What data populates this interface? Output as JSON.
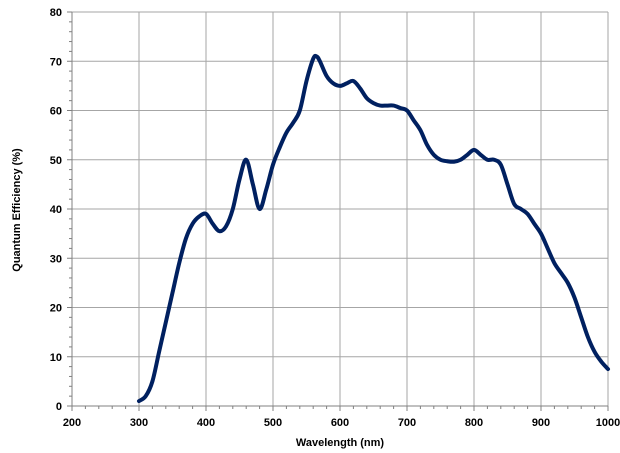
{
  "chart_data": {
    "type": "line",
    "title": "",
    "xlabel": "Wavelength (nm)",
    "ylabel": "Quantum Efficiency (%)",
    "xlim": [
      200,
      1000
    ],
    "ylim": [
      0,
      80
    ],
    "x_ticks": [
      200,
      300,
      400,
      500,
      600,
      700,
      800,
      900,
      1000
    ],
    "y_ticks": [
      0,
      10,
      20,
      30,
      40,
      50,
      60,
      70,
      80
    ],
    "x_tick_labels": [
      "200",
      "300",
      "400",
      "500",
      "600",
      "700",
      "800",
      "900",
      "1000"
    ],
    "y_tick_labels": [
      "0",
      "10",
      "20",
      "30",
      "40",
      "50",
      "60",
      "70",
      "80"
    ],
    "grid": true,
    "legend": "none",
    "line_color": "#002060",
    "series": [
      {
        "x": [
          300,
          310,
          320,
          330,
          340,
          350,
          360,
          370,
          380,
          390,
          400,
          410,
          420,
          430,
          440,
          450,
          460,
          470,
          480,
          490,
          500,
          510,
          520,
          530,
          540,
          550,
          560,
          565,
          570,
          580,
          590,
          600,
          610,
          620,
          630,
          640,
          650,
          660,
          670,
          680,
          690,
          700,
          710,
          720,
          730,
          740,
          750,
          760,
          770,
          780,
          790,
          800,
          810,
          820,
          830,
          840,
          850,
          860,
          870,
          880,
          890,
          900,
          910,
          920,
          930,
          940,
          950,
          960,
          970,
          980,
          990,
          1000
        ],
        "y": [
          1,
          2,
          5,
          11,
          17,
          23,
          29,
          34,
          37,
          38.5,
          39,
          37,
          35.5,
          36.5,
          40,
          46,
          50,
          45,
          40,
          44,
          49,
          52.5,
          55.5,
          57.5,
          60,
          66,
          70.5,
          71,
          70,
          67,
          65.5,
          65,
          65.5,
          66,
          64.5,
          62.5,
          61.5,
          61,
          61,
          61,
          60.5,
          60,
          58,
          56,
          53,
          51,
          50,
          49.7,
          49.6,
          50,
          51,
          52,
          51,
          50,
          50,
          49,
          45,
          41,
          40,
          39,
          37,
          35,
          32,
          29,
          27,
          25,
          22,
          18,
          14,
          11,
          9,
          7.5
        ]
      }
    ]
  }
}
